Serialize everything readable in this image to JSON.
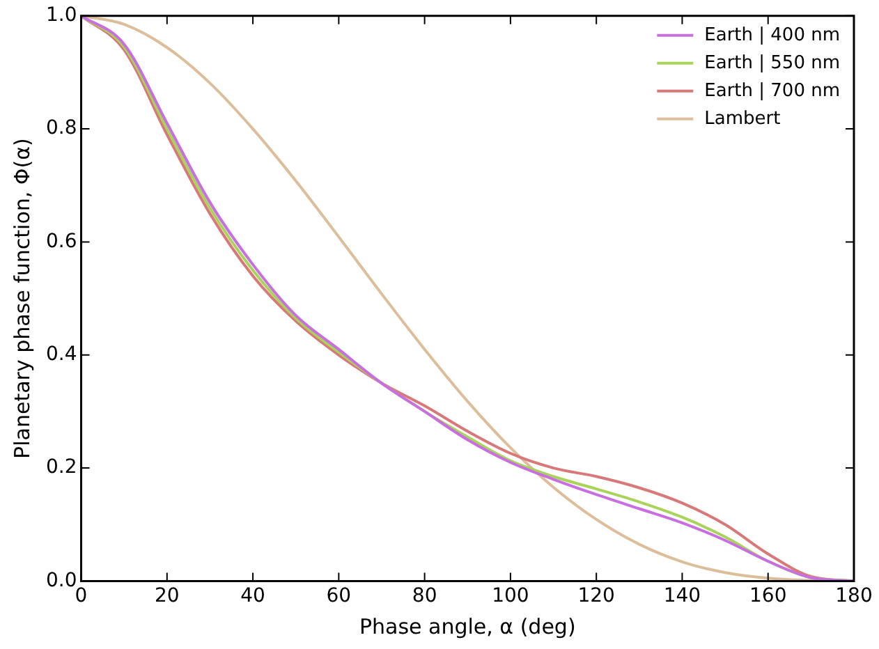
{
  "chart_data": {
    "type": "line",
    "xlabel": "Phase angle, α (deg)",
    "ylabel": "Planetary phase function, Φ(α)",
    "x": [
      0,
      10,
      20,
      30,
      40,
      50,
      60,
      70,
      80,
      90,
      100,
      110,
      120,
      130,
      140,
      150,
      160,
      170,
      180
    ],
    "series": [
      {
        "name": "Earth | 400 nm",
        "color": "#c86ee0",
        "values": [
          1.0,
          0.95,
          0.81,
          0.67,
          0.56,
          0.47,
          0.41,
          0.35,
          0.3,
          0.25,
          0.21,
          0.18,
          0.153,
          0.128,
          0.103,
          0.072,
          0.035,
          0.006,
          0.0
        ]
      },
      {
        "name": "Earth | 550 nm",
        "color": "#a8d45a",
        "values": [
          1.0,
          0.945,
          0.8,
          0.66,
          0.55,
          0.465,
          0.405,
          0.35,
          0.3,
          0.255,
          0.213,
          0.185,
          0.163,
          0.14,
          0.113,
          0.078,
          0.035,
          0.006,
          0.0
        ]
      },
      {
        "name": "Earth | 700 nm",
        "color": "#d87878",
        "values": [
          1.0,
          0.94,
          0.79,
          0.65,
          0.54,
          0.46,
          0.4,
          0.35,
          0.31,
          0.265,
          0.226,
          0.2,
          0.185,
          0.165,
          0.138,
          0.1,
          0.048,
          0.008,
          0.0
        ]
      },
      {
        "name": "Lambert",
        "color": "#dcbe9a",
        "values": [
          1.0,
          0.985,
          0.944,
          0.881,
          0.8,
          0.708,
          0.609,
          0.508,
          0.41,
          0.318,
          0.236,
          0.166,
          0.109,
          0.065,
          0.034,
          0.015,
          0.005,
          0.001,
          0.0
        ]
      }
    ],
    "xlim": [
      0,
      180
    ],
    "xticks": [
      0,
      20,
      40,
      60,
      80,
      100,
      120,
      140,
      160,
      180
    ],
    "ylim": [
      0.0,
      1.0
    ],
    "yticks": [
      {
        "value": 0,
        "label": "0.0"
      },
      {
        "value": 0.2,
        "label": "0.2"
      },
      {
        "value": 0.4,
        "label": "0.4"
      },
      {
        "value": 0.6,
        "label": "0.6"
      },
      {
        "value": 0.8,
        "label": "0.8"
      },
      {
        "value": 1,
        "label": "1.0"
      }
    ],
    "grid": false,
    "legend": "top right",
    "marker": "none",
    "line_style": "solid"
  }
}
